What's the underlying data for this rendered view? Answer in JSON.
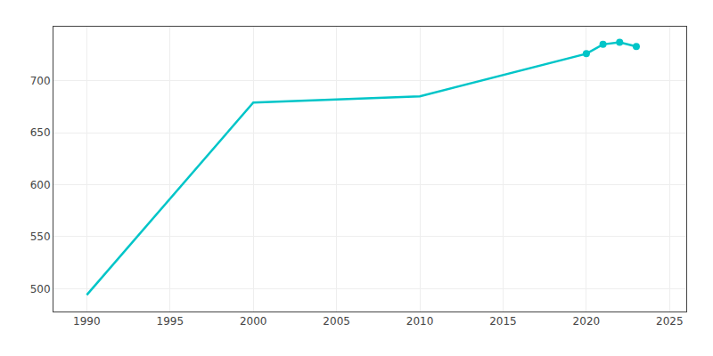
{
  "chart_data": {
    "type": "line",
    "x": [
      1990,
      2000,
      2005,
      2010,
      2020,
      2021,
      2022,
      2023
    ],
    "series": [
      {
        "type": "line",
        "line_style": "solid",
        "color": "#00C5C8",
        "values": [
          494,
          679,
          682,
          685,
          726,
          735,
          737,
          733
        ]
      },
      {
        "type": "scatter",
        "marker": "circle",
        "color": "#00C5C8",
        "values": [
          null,
          null,
          null,
          null,
          726,
          735,
          737,
          733
        ]
      }
    ],
    "xlim": [
      1988,
      2026
    ],
    "ylim": [
      478,
      752
    ],
    "xticks": [
      1990,
      1995,
      2000,
      2005,
      2010,
      2015,
      2020,
      2025
    ],
    "yticks": [
      500,
      550,
      600,
      650,
      700
    ],
    "grid": true
  }
}
